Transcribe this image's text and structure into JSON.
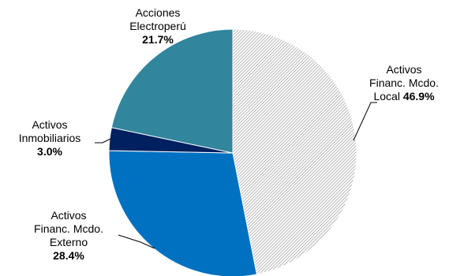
{
  "chart_data": {
    "type": "pie",
    "slices": [
      {
        "label_lines": [
          "Activos",
          "Financ. Mcdo.",
          "Local"
        ],
        "value": 46.9,
        "value_label": "46.9%",
        "color": "#ffffff",
        "pattern": "diagonal-hatch-gray"
      },
      {
        "label_lines": [
          "Activos",
          "Financ. Mcdo.",
          "Externo"
        ],
        "value": 28.4,
        "value_label": "28.4%",
        "color": "#0070c0"
      },
      {
        "label_lines": [
          "Activos",
          "Inmobiliarios"
        ],
        "value": 3.0,
        "value_label": "3.0%",
        "color": "#002060"
      },
      {
        "label_lines": [
          "Acciones",
          "Electroperú"
        ],
        "value": 21.7,
        "value_label": "21.7%",
        "color": "#31859c"
      }
    ],
    "start": "top",
    "direction": "clockwise",
    "legend": "none",
    "title": ""
  }
}
